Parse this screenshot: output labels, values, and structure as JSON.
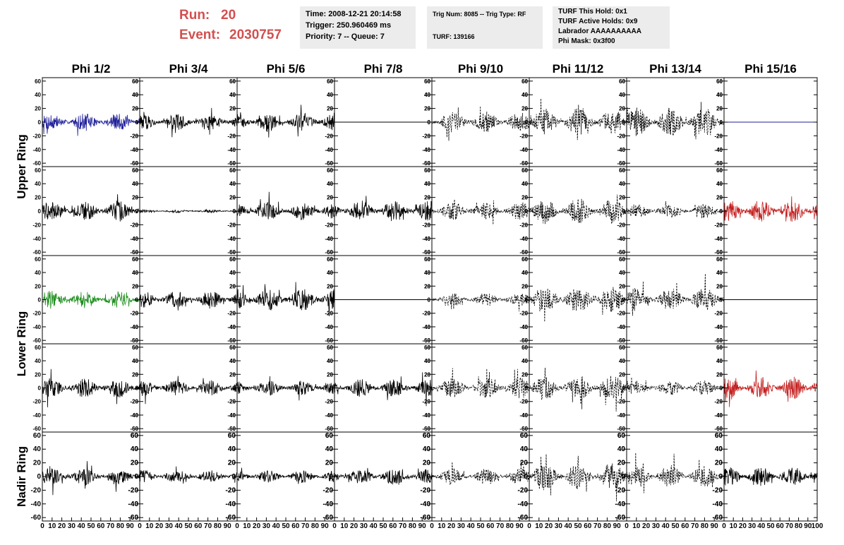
{
  "header": {
    "run_label": "Run:",
    "run_value": "20",
    "event_label": "Event:",
    "event_value": "2030757",
    "box1": [
      "Time: 2008-12-21 20:14:58",
      "Trigger: 250.960469 ms",
      "Priority: 7 -- Queue: 7"
    ],
    "box2": [
      "Trig Num: 8085 -- Trig Type: RF",
      "",
      "TURF: 139166"
    ],
    "box3": [
      "TURF This Hold: 0x1",
      "TURF Active Holds: 0x9",
      "Labrador AAAAAAAAAA",
      "Phi Mask: 0x3f00"
    ]
  },
  "columns": [
    "Phi 1/2",
    "Phi 3/4",
    "Phi 5/6",
    "Phi 7/8",
    "Phi 9/10",
    "Phi 11/12",
    "Phi 13/14",
    "Phi 15/16"
  ],
  "rows": [
    "Upper Ring",
    "Lower Ring",
    "Nadir Ring"
  ],
  "chart_data": {
    "type": "line",
    "panel_rows": 5,
    "panel_cols": 8,
    "xlim": [
      0,
      100
    ],
    "ylim": [
      -65,
      65
    ],
    "y_ticks": [
      -60,
      -40,
      -20,
      0,
      20,
      40,
      60
    ],
    "x_ticks": [
      0,
      10,
      20,
      30,
      40,
      50,
      60,
      70,
      80,
      90,
      100
    ],
    "x_tick_labels": [
      "0",
      "10",
      "20",
      "30",
      "40",
      "50",
      "60",
      "70",
      "80",
      "90",
      "100"
    ],
    "samples_per_trace": 260,
    "colors": {
      "default": "#000000",
      "blue": "#1f1f9a",
      "green": "#1f8f1f",
      "red": "#c41e1e"
    },
    "panels": [
      [
        {
          "color": "blue",
          "style": "solid",
          "amp": 11
        },
        {
          "color": "default",
          "style": "solid",
          "amp": 10
        },
        {
          "color": "default",
          "style": "solid",
          "amp": 12
        },
        {
          "color": "default",
          "style": "flat",
          "amp": 0
        },
        {
          "color": "default",
          "style": "dashed",
          "amp": 13
        },
        {
          "color": "default",
          "style": "dashed",
          "amp": 17
        },
        {
          "color": "default",
          "style": "dashed",
          "amp": 18
        },
        {
          "color": "blue",
          "style": "flat",
          "amp": 0
        }
      ],
      [
        {
          "color": "default",
          "style": "solid",
          "amp": 13
        },
        {
          "color": "default",
          "style": "solid",
          "amp": 2
        },
        {
          "color": "default",
          "style": "solid",
          "amp": 11
        },
        {
          "color": "default",
          "style": "solid",
          "amp": 13
        },
        {
          "color": "default",
          "style": "dashed",
          "amp": 11
        },
        {
          "color": "default",
          "style": "dashed",
          "amp": 16
        },
        {
          "color": "default",
          "style": "dashed",
          "amp": 9
        },
        {
          "color": "red",
          "style": "solid",
          "amp": 14
        }
      ],
      [
        {
          "color": "green",
          "style": "solid",
          "amp": 11
        },
        {
          "color": "default",
          "style": "solid",
          "amp": 11
        },
        {
          "color": "default",
          "style": "solid",
          "amp": 14
        },
        {
          "color": "default",
          "style": "flat",
          "amp": 0
        },
        {
          "color": "default",
          "style": "dashed",
          "amp": 8
        },
        {
          "color": "default",
          "style": "dashed",
          "amp": 17
        },
        {
          "color": "default",
          "style": "dashed",
          "amp": 15
        },
        {
          "color": "default",
          "style": "flat",
          "amp": 0
        }
      ],
      [
        {
          "color": "default",
          "style": "solid",
          "amp": 12
        },
        {
          "color": "default",
          "style": "solid",
          "amp": 10
        },
        {
          "color": "default",
          "style": "solid",
          "amp": 9
        },
        {
          "color": "default",
          "style": "solid",
          "amp": 11
        },
        {
          "color": "default",
          "style": "dashed",
          "amp": 13
        },
        {
          "color": "default",
          "style": "dashed",
          "amp": 16
        },
        {
          "color": "default",
          "style": "dashed",
          "amp": 9
        },
        {
          "color": "red",
          "style": "solid",
          "amp": 14
        }
      ],
      [
        {
          "color": "default",
          "style": "solid",
          "amp": 11
        },
        {
          "color": "default",
          "style": "solid",
          "amp": 8
        },
        {
          "color": "default",
          "style": "solid",
          "amp": 8
        },
        {
          "color": "default",
          "style": "solid",
          "amp": 10
        },
        {
          "color": "default",
          "style": "dashed",
          "amp": 10
        },
        {
          "color": "default",
          "style": "dashed",
          "amp": 17
        },
        {
          "color": "default",
          "style": "dashed",
          "amp": 14
        },
        {
          "color": "default",
          "style": "solid",
          "amp": 12
        }
      ]
    ]
  }
}
